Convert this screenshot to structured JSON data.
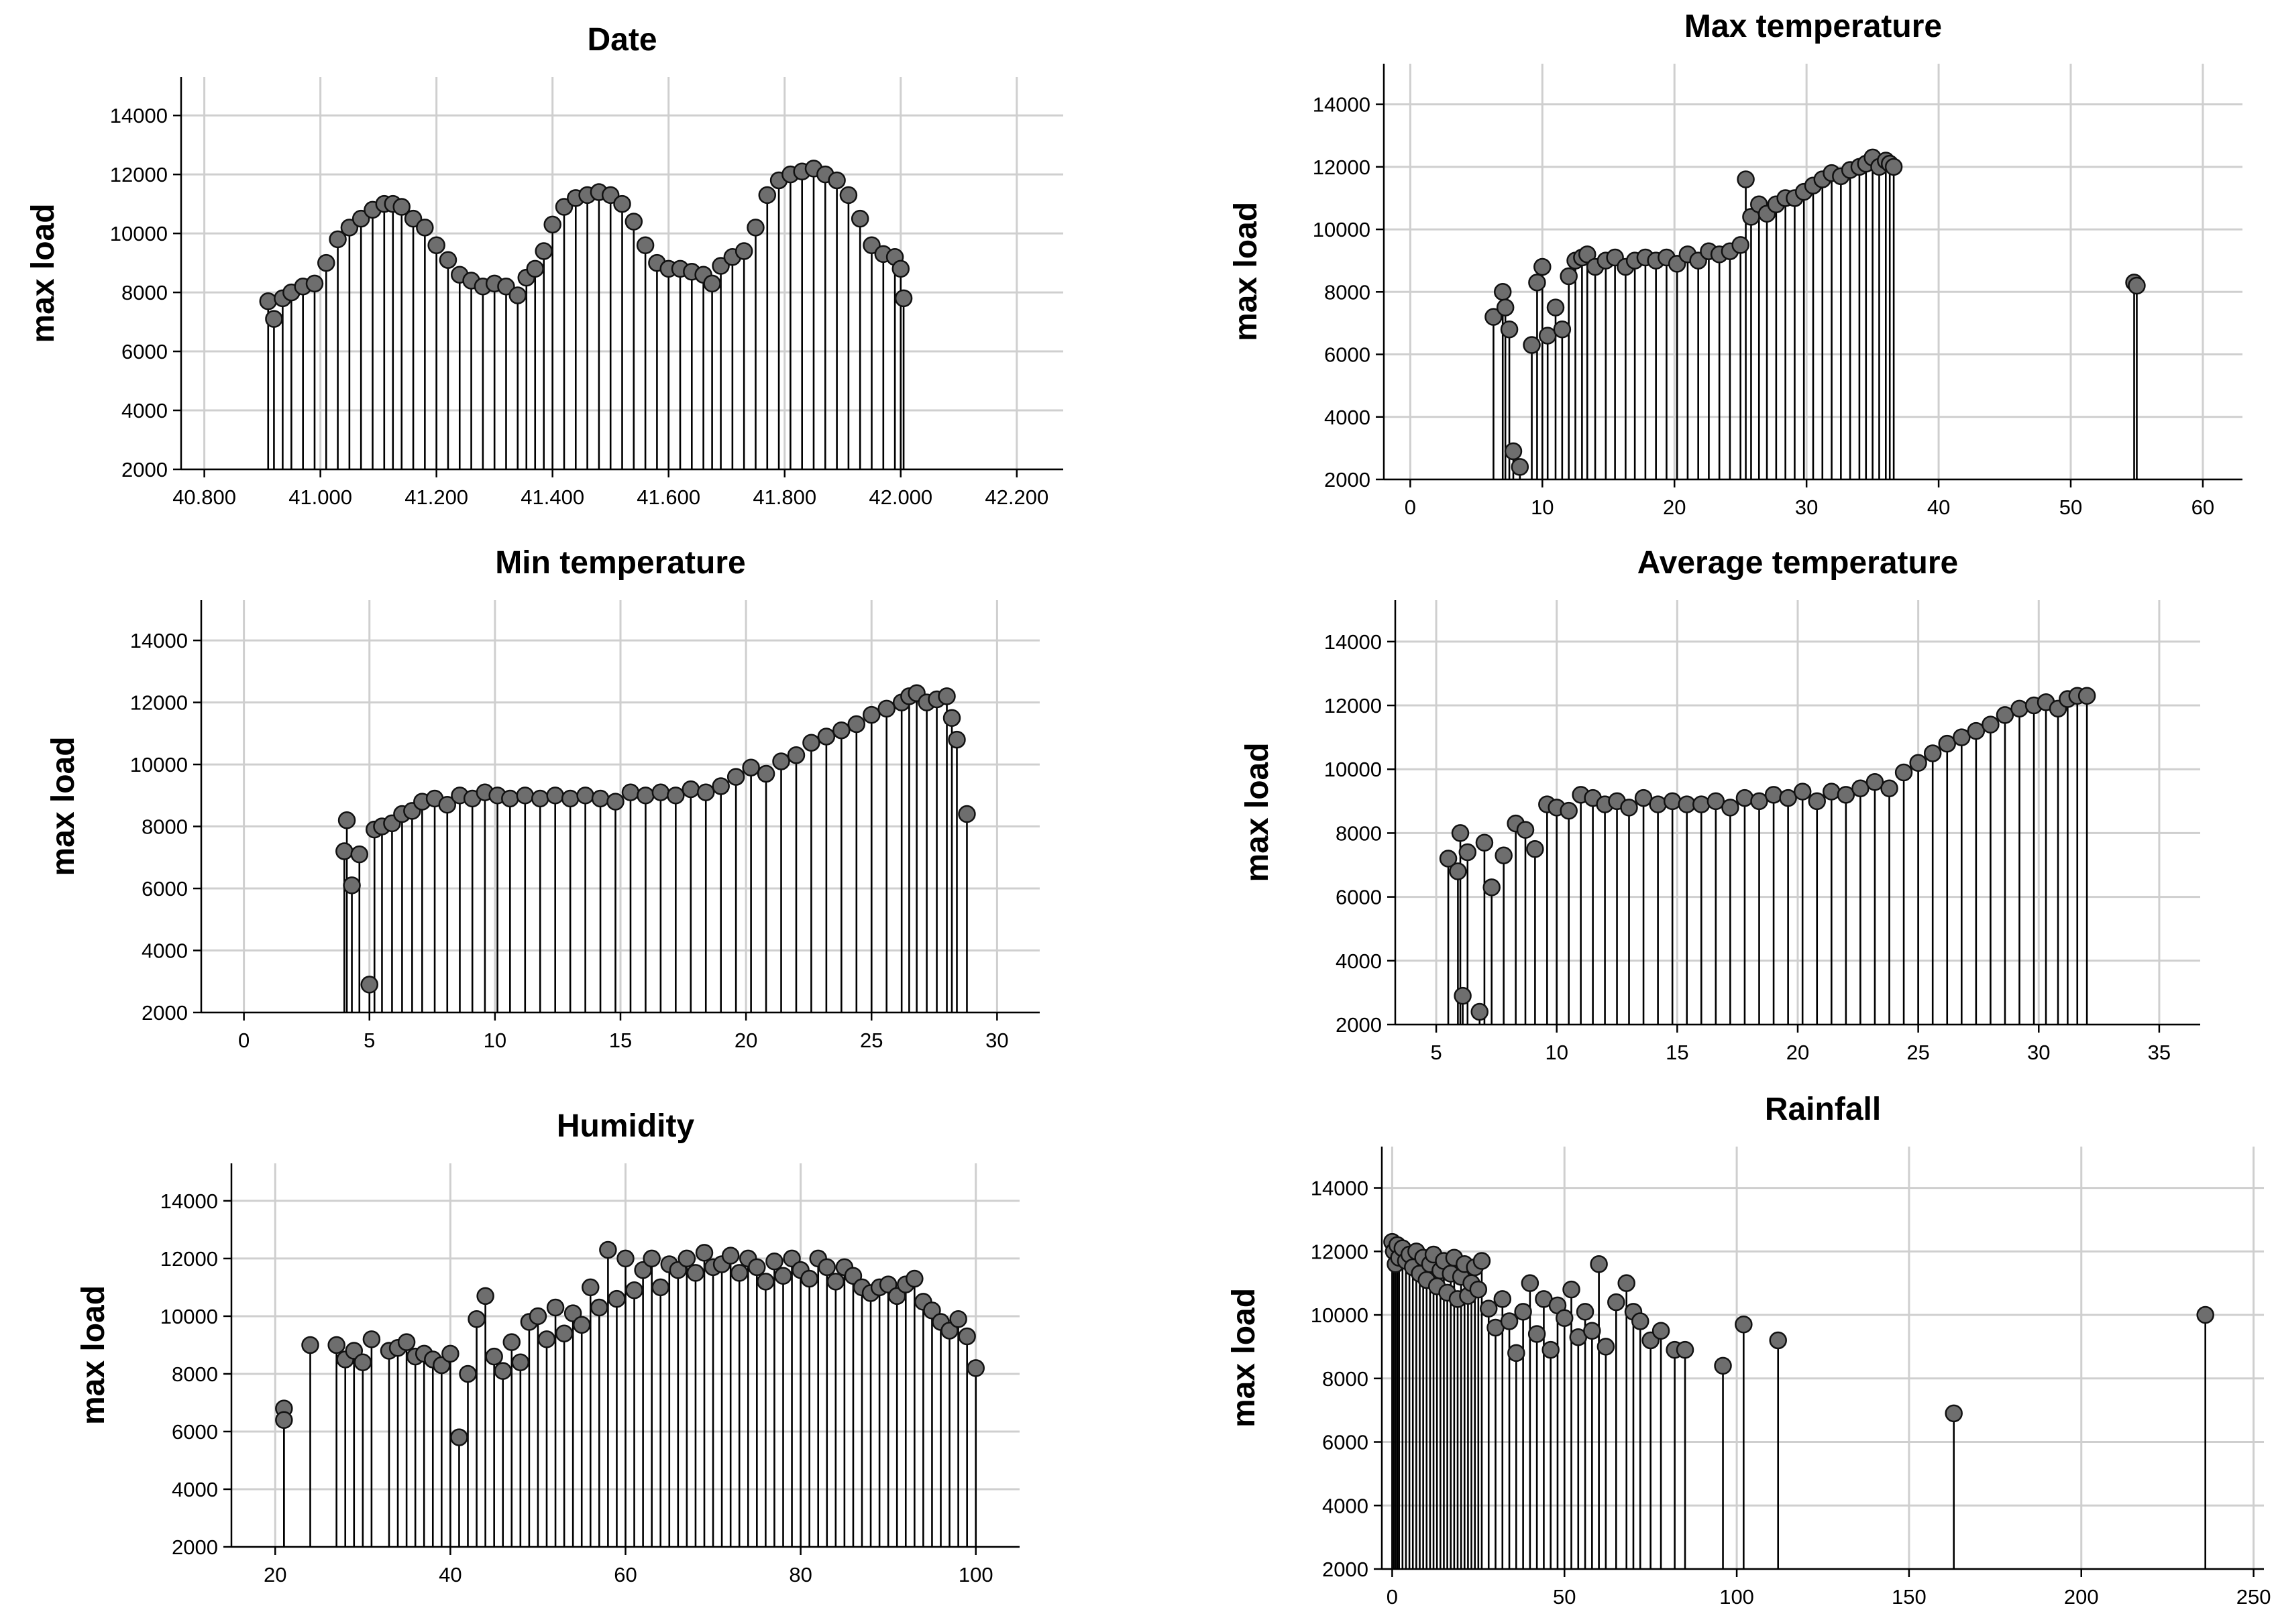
{
  "chart_data": [
    {
      "id": "date",
      "type": "scatter",
      "style": "drop-line",
      "title": "Date",
      "xlabel": "",
      "ylabel": "max load",
      "xlim": [
        40760,
        42280
      ],
      "ylim": [
        2000,
        15300
      ],
      "xticks": [
        40800,
        41000,
        41200,
        41400,
        41600,
        41800,
        42000,
        42200
      ],
      "xtick_labels": [
        "40.800",
        "41.000",
        "41.200",
        "41.400",
        "41.600",
        "41.800",
        "42.000",
        "42.200"
      ],
      "yticks": [
        2000,
        4000,
        6000,
        8000,
        10000,
        12000,
        14000
      ],
      "ytick_labels": [
        "2000",
        "4000",
        "6000",
        "8000",
        "10000",
        "12000",
        "14000"
      ],
      "series": [
        {
          "name": "max load",
          "x": [
            40910,
            40920,
            40935,
            40950,
            40970,
            40990,
            41010,
            41030,
            41050,
            41070,
            41090,
            41110,
            41125,
            41140,
            41160,
            41180,
            41200,
            41220,
            41240,
            41260,
            41280,
            41300,
            41320,
            41340,
            41355,
            41370,
            41385,
            41400,
            41420,
            41440,
            41460,
            41480,
            41500,
            41520,
            41540,
            41560,
            41580,
            41600,
            41620,
            41640,
            41660,
            41675,
            41690,
            41710,
            41730,
            41750,
            41770,
            41790,
            41810,
            41830,
            41850,
            41870,
            41890,
            41910,
            41930,
            41950,
            41970,
            41990,
            42000,
            42005
          ],
          "y": [
            7700,
            7100,
            7800,
            8000,
            8200,
            8300,
            9000,
            9800,
            10200,
            10500,
            10800,
            11000,
            11000,
            10900,
            10500,
            10200,
            9600,
            9100,
            8600,
            8400,
            8200,
            8300,
            8200,
            7900,
            8500,
            8800,
            9400,
            10300,
            10900,
            11200,
            11300,
            11400,
            11300,
            11000,
            10400,
            9600,
            9000,
            8800,
            8800,
            8700,
            8600,
            8300,
            8900,
            9200,
            9400,
            10200,
            11300,
            11800,
            12000,
            12100,
            12200,
            12000,
            11800,
            11300,
            10500,
            9600,
            9300,
            9200,
            8800,
            7800
          ]
        }
      ]
    },
    {
      "id": "max-temperature",
      "type": "scatter",
      "style": "drop-line",
      "title": "Max temperature",
      "xlabel": "",
      "ylabel": "max load",
      "xlim": [
        -2,
        63
      ],
      "ylim": [
        2000,
        15300
      ],
      "xticks": [
        0,
        10,
        20,
        30,
        40,
        50,
        60
      ],
      "xtick_labels": [
        "0",
        "10",
        "20",
        "30",
        "40",
        "50",
        "60"
      ],
      "yticks": [
        2000,
        4000,
        6000,
        8000,
        10000,
        12000,
        14000
      ],
      "ytick_labels": [
        "2000",
        "4000",
        "6000",
        "8000",
        "10000",
        "12000",
        "14000"
      ],
      "series": [
        {
          "name": "max load",
          "x": [
            6.3,
            7,
            7.2,
            7.5,
            7.8,
            8.3,
            9.2,
            9.6,
            10,
            10.4,
            11,
            11.5,
            12,
            12.5,
            13,
            13.4,
            14,
            14.8,
            15.5,
            16.3,
            17,
            17.8,
            18.6,
            19.4,
            20.2,
            21,
            21.8,
            22.6,
            23.4,
            24.2,
            25,
            25.4,
            25.8,
            26.4,
            27,
            27.7,
            28.4,
            29.1,
            29.8,
            30.5,
            31.2,
            31.9,
            32.6,
            33.3,
            34,
            34.5,
            35,
            35.5,
            36,
            36.3,
            36.6,
            54.8,
            55
          ],
          "y": [
            7200,
            8000,
            7500,
            6800,
            2900,
            2400,
            6300,
            8300,
            8800,
            6600,
            7500,
            6800,
            8500,
            9000,
            9100,
            9200,
            8800,
            9000,
            9100,
            8800,
            9000,
            9100,
            9000,
            9100,
            8900,
            9200,
            9000,
            9300,
            9200,
            9300,
            9500,
            11600,
            10400,
            10800,
            10500,
            10800,
            11000,
            11000,
            11200,
            11400,
            11600,
            11800,
            11700,
            11900,
            12000,
            12100,
            12300,
            12000,
            12200,
            12100,
            12000,
            8300,
            8200
          ]
        }
      ]
    },
    {
      "id": "min-temperature",
      "type": "scatter",
      "style": "drop-line",
      "title": "Min temperature",
      "xlabel": "",
      "ylabel": "max load",
      "xlim": [
        -1.7,
        31.7
      ],
      "ylim": [
        2000,
        15300
      ],
      "xticks": [
        0,
        5,
        10,
        15,
        20,
        25,
        30
      ],
      "xtick_labels": [
        "0",
        "5",
        "10",
        "15",
        "20",
        "25",
        "30"
      ],
      "yticks": [
        2000,
        4000,
        6000,
        8000,
        10000,
        12000,
        14000
      ],
      "ytick_labels": [
        "2000",
        "4000",
        "6000",
        "8000",
        "10000",
        "12000",
        "14000"
      ],
      "series": [
        {
          "name": "max load",
          "x": [
            4,
            4.1,
            4.3,
            4.6,
            5,
            5.2,
            5.5,
            5.9,
            6.3,
            6.7,
            7.1,
            7.6,
            8.1,
            8.6,
            9.1,
            9.6,
            10.1,
            10.6,
            11.2,
            11.8,
            12.4,
            13,
            13.6,
            14.2,
            14.8,
            15.4,
            16,
            16.6,
            17.2,
            17.8,
            18.4,
            19,
            19.6,
            20.2,
            20.8,
            21.4,
            22,
            22.6,
            23.2,
            23.8,
            24.4,
            25,
            25.6,
            26.2,
            26.5,
            26.8,
            27.2,
            27.6,
            28,
            28.2,
            28.4,
            28.8
          ],
          "y": [
            7200,
            8200,
            6100,
            7100,
            2900,
            7900,
            8000,
            8100,
            8400,
            8500,
            8800,
            8900,
            8700,
            9000,
            8900,
            9100,
            9000,
            8900,
            9000,
            8900,
            9000,
            8900,
            9000,
            8900,
            8800,
            9100,
            9000,
            9100,
            9000,
            9200,
            9100,
            9300,
            9600,
            9900,
            9700,
            10100,
            10300,
            10700,
            10900,
            11100,
            11300,
            11600,
            11800,
            12000,
            12200,
            12300,
            12000,
            12100,
            12200,
            11500,
            10800,
            8400
          ]
        }
      ]
    },
    {
      "id": "average-temperature",
      "type": "scatter",
      "style": "drop-line",
      "title": "Average temperature",
      "xlabel": "",
      "ylabel": "max load",
      "xlim": [
        3.3,
        36.7
      ],
      "ylim": [
        2000,
        15300
      ],
      "xticks": [
        5,
        10,
        15,
        20,
        25,
        30,
        35
      ],
      "xtick_labels": [
        "5",
        "10",
        "15",
        "20",
        "25",
        "30",
        "35"
      ],
      "yticks": [
        2000,
        4000,
        6000,
        8000,
        10000,
        12000,
        14000
      ],
      "ytick_labels": [
        "2000",
        "4000",
        "6000",
        "8000",
        "10000",
        "12000",
        "14000"
      ],
      "series": [
        {
          "name": "max load",
          "x": [
            5.5,
            5.9,
            6,
            6.1,
            6.3,
            6.8,
            7,
            7.3,
            7.8,
            8.3,
            8.7,
            9.1,
            9.6,
            10,
            10.5,
            11,
            11.5,
            12,
            12.5,
            13,
            13.6,
            14.2,
            14.8,
            15.4,
            16,
            16.6,
            17.2,
            17.8,
            18.4,
            19,
            19.6,
            20.2,
            20.8,
            21.4,
            22,
            22.6,
            23.2,
            23.8,
            24.4,
            25,
            25.6,
            26.2,
            26.8,
            27.4,
            28,
            28.6,
            29.2,
            29.8,
            30.3,
            30.8,
            31.2,
            31.6,
            32
          ],
          "y": [
            7200,
            6800,
            8000,
            2900,
            7400,
            2400,
            7700,
            6300,
            7300,
            8300,
            8100,
            7500,
            8900,
            8800,
            8700,
            9200,
            9100,
            8900,
            9000,
            8800,
            9100,
            8900,
            9000,
            8900,
            8900,
            9000,
            8800,
            9100,
            9000,
            9200,
            9100,
            9300,
            9000,
            9300,
            9200,
            9400,
            9600,
            9400,
            9900,
            10200,
            10500,
            10800,
            11000,
            11200,
            11400,
            11700,
            11900,
            12000,
            12100,
            11900,
            12200,
            12300,
            12300
          ]
        }
      ]
    },
    {
      "id": "humidity",
      "type": "scatter",
      "style": "drop-line",
      "title": "Humidity",
      "xlabel": "",
      "ylabel": "max load",
      "xlim": [
        15,
        105
      ],
      "ylim": [
        2000,
        15300
      ],
      "xticks": [
        20,
        40,
        60,
        80,
        100
      ],
      "xtick_labels": [
        "20",
        "40",
        "60",
        "80",
        "100"
      ],
      "yticks": [
        2000,
        4000,
        6000,
        8000,
        10000,
        12000,
        14000
      ],
      "ytick_labels": [
        "2000",
        "4000",
        "6000",
        "8000",
        "10000",
        "12000",
        "14000"
      ],
      "series": [
        {
          "name": "max load",
          "x": [
            21,
            21,
            24,
            27,
            28,
            29,
            30,
            31,
            33,
            34,
            35,
            36,
            37,
            38,
            39,
            40,
            41,
            42,
            43,
            44,
            45,
            46,
            47,
            48,
            49,
            50,
            51,
            52,
            53,
            54,
            55,
            56,
            57,
            58,
            59,
            60,
            61,
            62,
            63,
            64,
            65,
            66,
            67,
            68,
            69,
            70,
            71,
            72,
            73,
            74,
            75,
            76,
            77,
            78,
            79,
            80,
            81,
            82,
            83,
            84,
            85,
            86,
            87,
            88,
            89,
            90,
            91,
            92,
            93,
            94,
            95,
            96,
            97,
            98,
            99,
            100
          ],
          "y": [
            6800,
            6400,
            9000,
            9000,
            8500,
            8800,
            8400,
            9200,
            8800,
            8900,
            9100,
            8600,
            8700,
            8500,
            8300,
            8700,
            5800,
            8000,
            9900,
            10700,
            8600,
            8100,
            9100,
            8400,
            9800,
            10000,
            9200,
            10300,
            9400,
            10100,
            9700,
            11000,
            10300,
            12300,
            10600,
            12000,
            10900,
            11600,
            12000,
            11000,
            11800,
            11600,
            12000,
            11500,
            12200,
            11700,
            11800,
            12100,
            11500,
            12000,
            11700,
            11200,
            11900,
            11400,
            12000,
            11600,
            11300,
            12000,
            11700,
            11200,
            11700,
            11400,
            11000,
            10800,
            11000,
            11100,
            10700,
            11100,
            11300,
            10500,
            10200,
            9800,
            9500,
            9900,
            9300,
            8200
          ]
        }
      ]
    },
    {
      "id": "rainfall",
      "type": "scatter",
      "style": "drop-line",
      "title": "Rainfall",
      "xlabel": "",
      "ylabel": "max load",
      "xlim": [
        -3,
        253
      ],
      "ylim": [
        2000,
        15300
      ],
      "xticks": [
        0,
        50,
        100,
        150,
        200,
        250
      ],
      "xtick_labels": [
        "0",
        "50",
        "100",
        "150",
        "200",
        "250"
      ],
      "yticks": [
        2000,
        4000,
        6000,
        8000,
        10000,
        12000,
        14000
      ],
      "ytick_labels": [
        "2000",
        "4000",
        "6000",
        "8000",
        "10000",
        "12000",
        "14000"
      ],
      "series": [
        {
          "name": "max load",
          "x": [
            0,
            0.5,
            1,
            1.5,
            2,
            3,
            4,
            5,
            6,
            7,
            8,
            9,
            10,
            11,
            12,
            13,
            14,
            15,
            16,
            17,
            18,
            19,
            20,
            21,
            22,
            23,
            24,
            25,
            26,
            28,
            30,
            32,
            34,
            36,
            38,
            40,
            42,
            44,
            46,
            48,
            50,
            52,
            54,
            56,
            58,
            60,
            62,
            65,
            68,
            70,
            72,
            75,
            78,
            82,
            85,
            96,
            102,
            112,
            163,
            236
          ],
          "y": [
            12300,
            12000,
            11600,
            12200,
            11800,
            12100,
            11700,
            11900,
            11500,
            12000,
            11300,
            11800,
            11100,
            11600,
            11900,
            10900,
            11400,
            11700,
            10700,
            11300,
            11800,
            10500,
            11200,
            11600,
            10600,
            11000,
            11500,
            10800,
            11700,
            10200,
            9600,
            10500,
            9800,
            8800,
            10100,
            11000,
            9400,
            10500,
            8900,
            10300,
            9900,
            10800,
            9300,
            10100,
            9500,
            11600,
            9000,
            10400,
            11000,
            10100,
            9800,
            9200,
            9500,
            8900,
            8900,
            8400,
            9700,
            9200,
            6900,
            10000
          ]
        }
      ]
    }
  ]
}
